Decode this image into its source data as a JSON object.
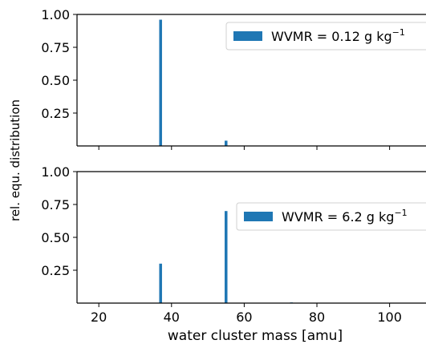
{
  "chart_data": [
    {
      "type": "bar",
      "series": [
        {
          "name": "WVMR = 0.12 g kg",
          "name_superscript": "−1",
          "x": [
            37,
            55
          ],
          "values": [
            0.96,
            0.04
          ],
          "color": "#1f77b4"
        }
      ],
      "xlim": [
        14,
        112
      ],
      "ylim": [
        0,
        1.0
      ],
      "yticks": [
        "1.00",
        "0.75",
        "0.50",
        "0.25"
      ],
      "legend": "top-right"
    },
    {
      "type": "bar",
      "series": [
        {
          "name": "WVMR = 6.2 g kg",
          "name_superscript": "−1",
          "x": [
            37,
            55,
            73
          ],
          "values": [
            0.3,
            0.7,
            0.005
          ],
          "color": "#1f77b4"
        }
      ],
      "xlim": [
        14,
        112
      ],
      "ylim": [
        0,
        1.0
      ],
      "yticks": [
        "1.00",
        "0.75",
        "0.50",
        "0.25"
      ],
      "xticks": [
        "20",
        "40",
        "60",
        "80",
        "100"
      ],
      "legend": "top-right"
    }
  ],
  "shared": {
    "ylabel": "rel. equ. distribution",
    "xlabel": "water cluster mass [amu]"
  }
}
